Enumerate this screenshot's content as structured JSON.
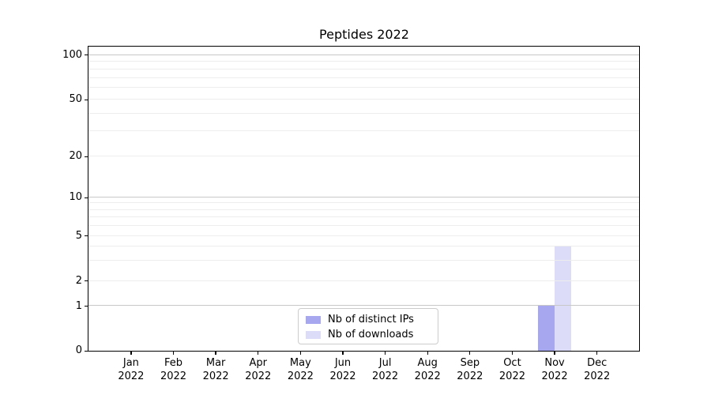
{
  "figure": {
    "title": "Peptides 2022",
    "background": "#ffffff"
  },
  "chart_data": {
    "type": "bar",
    "title": "Peptides 2022",
    "categories": [
      "Jan 2022",
      "Feb 2022",
      "Mar 2022",
      "Apr 2022",
      "May 2022",
      "Jun 2022",
      "Jul 2022",
      "Aug 2022",
      "Sep 2022",
      "Oct 2022",
      "Nov 2022",
      "Dec 2022"
    ],
    "series": [
      {
        "name": "Nb of distinct IPs",
        "color": "#a7a7f0",
        "values": [
          0,
          0,
          0,
          0,
          0,
          0,
          0,
          0,
          0,
          0,
          1,
          0
        ]
      },
      {
        "name": "Nb of downloads",
        "color": "#dcdcf8",
        "values": [
          0,
          0,
          0,
          0,
          0,
          0,
          0,
          0,
          0,
          0,
          4,
          0
        ]
      }
    ],
    "xlabel": "",
    "ylabel": "",
    "yscale": "symlog",
    "yticks": [
      0,
      1,
      2,
      5,
      10,
      20,
      50,
      100
    ],
    "ylim": [
      0,
      114
    ],
    "grid": {
      "horizontal": true,
      "vertical": false
    },
    "legend_position": "lower center"
  },
  "colors": {
    "bar_distinct_ips": "#a7a7f0",
    "bar_downloads": "#dcdcf8",
    "grid_major": "#c8c8c8",
    "grid_minor": "#ededed",
    "spine": "#000000",
    "legend_border": "#cccccc",
    "text": "#000000"
  }
}
